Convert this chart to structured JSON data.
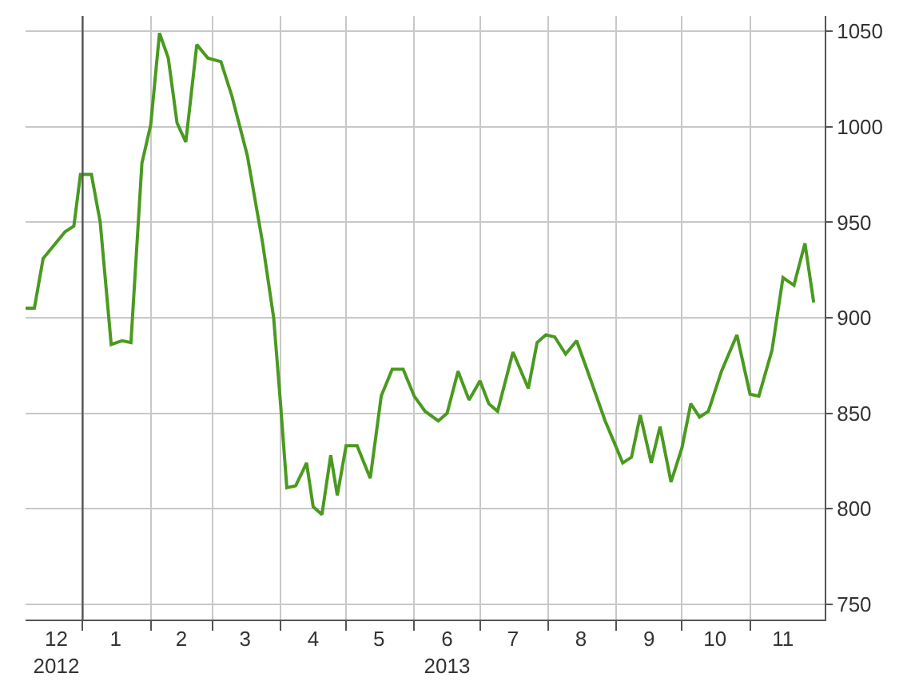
{
  "chart_data": {
    "type": "line",
    "x": [
      "2012-12-06",
      "2012-12-10",
      "2012-12-14",
      "2012-12-19",
      "2012-12-24",
      "2012-12-28",
      "2012-12-31",
      "2013-01-05",
      "2013-01-09",
      "2013-01-14",
      "2013-01-19",
      "2013-01-23",
      "2013-01-28",
      "2013-02-01",
      "2013-02-05",
      "2013-02-09",
      "2013-02-13",
      "2013-02-17",
      "2013-02-22",
      "2013-02-27",
      "2013-03-05",
      "2013-03-10",
      "2013-03-17",
      "2013-03-24",
      "2013-03-29",
      "2013-04-01",
      "2013-04-04",
      "2013-04-08",
      "2013-04-13",
      "2013-04-16",
      "2013-04-20",
      "2013-04-24",
      "2013-04-27",
      "2013-05-01",
      "2013-05-06",
      "2013-05-12",
      "2013-05-17",
      "2013-05-22",
      "2013-05-27",
      "2013-06-01",
      "2013-06-06",
      "2013-06-12",
      "2013-06-16",
      "2013-06-21",
      "2013-06-26",
      "2013-07-01",
      "2013-07-05",
      "2013-07-09",
      "2013-07-16",
      "2013-07-23",
      "2013-07-27",
      "2013-07-31",
      "2013-08-04",
      "2013-08-09",
      "2013-08-14",
      "2013-08-19",
      "2013-08-27",
      "2013-09-04",
      "2013-09-08",
      "2013-09-12",
      "2013-09-17",
      "2013-09-21",
      "2013-09-26",
      "2013-10-01",
      "2013-10-05",
      "2013-10-09",
      "2013-10-13",
      "2013-10-19",
      "2013-10-26",
      "2013-11-01",
      "2013-11-05",
      "2013-11-11",
      "2013-11-16",
      "2013-11-21",
      "2013-11-26",
      "2013-11-30"
    ],
    "series": [
      {
        "color": "#4a9a1f",
        "values": [
          905,
          905,
          931,
          938,
          945,
          948,
          975,
          975,
          950,
          886,
          888,
          887,
          981,
          1001,
          1049,
          1036,
          1002,
          992,
          1043,
          1036,
          1034,
          1016,
          985,
          939,
          900,
          857,
          811,
          812,
          824,
          801,
          797,
          828,
          807,
          833,
          833,
          816,
          859,
          873,
          873,
          859,
          851,
          846,
          850,
          872,
          857,
          867,
          855,
          851,
          882,
          863,
          887,
          891,
          890,
          881,
          888,
          872,
          846,
          824,
          827,
          849,
          824,
          843,
          814,
          832,
          855,
          848,
          851,
          872,
          891,
          860,
          859,
          883,
          921,
          917,
          939,
          908
        ]
      }
    ],
    "xlim": [
      "2012-12-06",
      "2013-12-05"
    ],
    "xticks": [
      {
        "value": "2012-12-20",
        "label": "12\n2012"
      },
      {
        "value": "2013-01-01",
        "label": null
      },
      {
        "value": "2013-01-16",
        "label": "1"
      },
      {
        "value": "2013-02-01",
        "label": null
      },
      {
        "value": "2013-02-15",
        "label": "2"
      },
      {
        "value": "2013-03-01",
        "label": null
      },
      {
        "value": "2013-03-16",
        "label": "3"
      },
      {
        "value": "2013-04-01",
        "label": null
      },
      {
        "value": "2013-04-16",
        "label": "4"
      },
      {
        "value": "2013-05-01",
        "label": null
      },
      {
        "value": "2013-05-16",
        "label": "5"
      },
      {
        "value": "2013-06-01",
        "label": null
      },
      {
        "value": "2013-06-16",
        "label": "6\n2013"
      },
      {
        "value": "2013-07-01",
        "label": null
      },
      {
        "value": "2013-07-16",
        "label": "7"
      },
      {
        "value": "2013-08-01",
        "label": null
      },
      {
        "value": "2013-08-16",
        "label": "8"
      },
      {
        "value": "2013-09-01",
        "label": null
      },
      {
        "value": "2013-09-16",
        "label": "9"
      },
      {
        "value": "2013-10-01",
        "label": null
      },
      {
        "value": "2013-10-16",
        "label": "10"
      },
      {
        "value": "2013-11-01",
        "label": null
      },
      {
        "value": "2013-11-16",
        "label": "11"
      }
    ],
    "ylim": [
      742,
      1058
    ],
    "yticks": [
      750,
      800,
      850,
      900,
      950,
      1000,
      1050
    ],
    "grid": true,
    "ref_lines": [
      {
        "axis": "x",
        "value": "2013-01-01",
        "color": "#555555"
      }
    ],
    "marker": "none",
    "line_style": "solid"
  }
}
